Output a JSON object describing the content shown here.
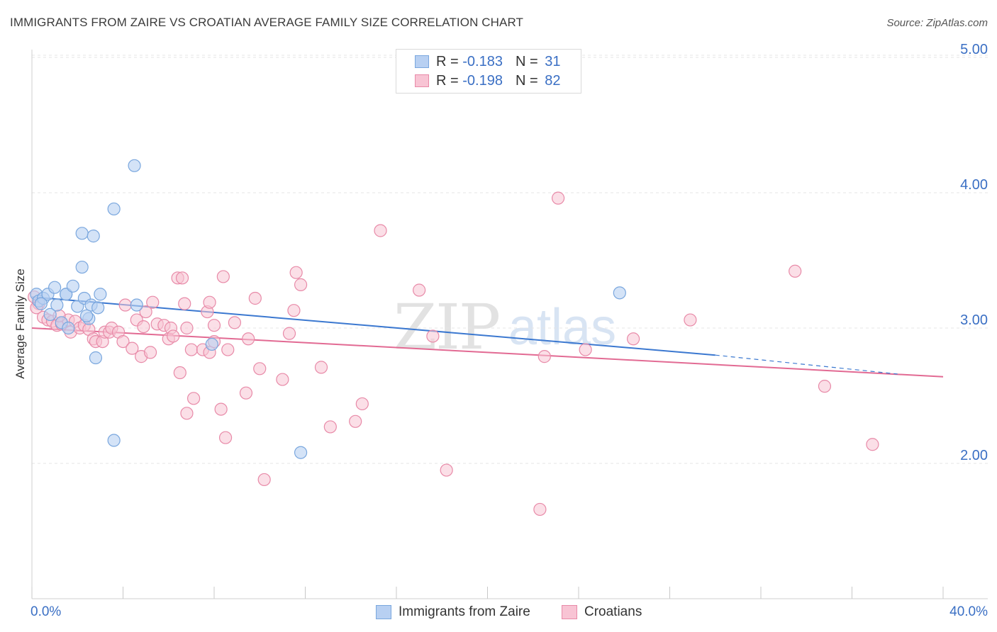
{
  "title": "IMMIGRANTS FROM ZAIRE VS CROATIAN AVERAGE FAMILY SIZE CORRELATION CHART",
  "source": "Source: ZipAtlas.com",
  "watermark": {
    "part1": "ZIP",
    "part2": "atlas"
  },
  "legend": {
    "rows": [
      {
        "r_label": "R = ",
        "r_value": "-0.183",
        "n_label": "N = ",
        "n_value": "31"
      },
      {
        "r_label": "R = ",
        "r_value": "-0.198",
        "n_label": "N = ",
        "n_value": "82"
      }
    ]
  },
  "colors": {
    "blue_fill": "#b8d0f2",
    "blue_stroke": "#7aa7de",
    "blue_line": "#3b78d0",
    "pink_fill": "#f8c4d4",
    "pink_stroke": "#e88aa8",
    "pink_line": "#e26a93",
    "axis_text": "#3a6fc4",
    "grid": "#e4e4e4"
  },
  "chart_data": {
    "type": "scatter",
    "ylabel": "Average Family Size",
    "xlabel": "",
    "xlim": [
      0,
      40
    ],
    "ylim": [
      1.0,
      5.1
    ],
    "x_tick_labels": [
      "0.0%",
      "40.0%"
    ],
    "y_ticks": [
      2.0,
      3.0,
      4.0,
      5.0
    ],
    "y_tick_labels": [
      "2.00",
      "3.00",
      "4.00",
      "5.00"
    ],
    "grid": "horizontal dashed",
    "series": [
      {
        "name": "Immigrants from Zaire",
        "color": "#7aa7de",
        "trend": {
          "x": [
            0,
            30
          ],
          "y": [
            3.23,
            2.8
          ],
          "dash_to": [
            38,
            2.66
          ]
        },
        "points": [
          [
            0.2,
            3.25
          ],
          [
            0.3,
            3.2
          ],
          [
            0.5,
            3.22
          ],
          [
            0.7,
            3.25
          ],
          [
            0.8,
            3.1
          ],
          [
            1.0,
            3.3
          ],
          [
            1.1,
            3.17
          ],
          [
            1.3,
            3.04
          ],
          [
            1.5,
            3.25
          ],
          [
            1.5,
            3.25
          ],
          [
            1.8,
            3.31
          ],
          [
            2.0,
            3.16
          ],
          [
            2.2,
            3.45
          ],
          [
            2.2,
            3.7
          ],
          [
            2.3,
            3.22
          ],
          [
            2.5,
            3.07
          ],
          [
            2.6,
            3.17
          ],
          [
            2.7,
            3.68
          ],
          [
            2.8,
            2.78
          ],
          [
            2.9,
            3.15
          ],
          [
            3.0,
            3.25
          ],
          [
            3.6,
            3.88
          ],
          [
            3.6,
            2.17
          ],
          [
            4.5,
            4.2
          ],
          [
            4.6,
            3.17
          ],
          [
            7.9,
            2.88
          ],
          [
            11.8,
            2.08
          ],
          [
            25.8,
            3.26
          ],
          [
            2.4,
            3.09
          ],
          [
            1.6,
            3.0
          ],
          [
            0.4,
            3.18
          ]
        ]
      },
      {
        "name": "Croatians",
        "color": "#e88aa8",
        "trend": {
          "x": [
            0,
            40
          ],
          "y": [
            3.0,
            2.64
          ]
        },
        "points": [
          [
            0.1,
            3.23
          ],
          [
            0.3,
            3.18
          ],
          [
            0.5,
            3.08
          ],
          [
            0.7,
            3.06
          ],
          [
            0.9,
            3.05
          ],
          [
            1.1,
            3.02
          ],
          [
            1.3,
            3.03
          ],
          [
            1.6,
            3.06
          ],
          [
            1.7,
            2.97
          ],
          [
            1.9,
            3.05
          ],
          [
            2.1,
            3.0
          ],
          [
            2.3,
            3.02
          ],
          [
            2.5,
            2.99
          ],
          [
            2.7,
            2.92
          ],
          [
            2.8,
            2.9
          ],
          [
            3.1,
            2.9
          ],
          [
            3.2,
            2.97
          ],
          [
            3.4,
            2.97
          ],
          [
            3.5,
            3.0
          ],
          [
            3.8,
            2.97
          ],
          [
            4.0,
            2.9
          ],
          [
            4.1,
            3.17
          ],
          [
            4.4,
            2.85
          ],
          [
            4.6,
            3.06
          ],
          [
            4.8,
            2.79
          ],
          [
            4.9,
            3.01
          ],
          [
            5.0,
            3.12
          ],
          [
            5.2,
            2.82
          ],
          [
            5.3,
            3.19
          ],
          [
            5.5,
            3.03
          ],
          [
            5.8,
            3.02
          ],
          [
            6.0,
            2.92
          ],
          [
            6.1,
            3.0
          ],
          [
            6.2,
            2.94
          ],
          [
            6.4,
            3.37
          ],
          [
            6.5,
            2.67
          ],
          [
            6.6,
            3.37
          ],
          [
            6.7,
            3.18
          ],
          [
            6.8,
            2.37
          ],
          [
            7.0,
            2.84
          ],
          [
            7.1,
            2.48
          ],
          [
            7.5,
            2.84
          ],
          [
            7.7,
            3.12
          ],
          [
            7.8,
            3.19
          ],
          [
            7.8,
            2.82
          ],
          [
            8.0,
            3.02
          ],
          [
            8.0,
            2.9
          ],
          [
            8.3,
            2.4
          ],
          [
            8.4,
            3.38
          ],
          [
            8.5,
            2.19
          ],
          [
            8.6,
            2.84
          ],
          [
            8.9,
            3.04
          ],
          [
            9.4,
            2.52
          ],
          [
            9.5,
            2.92
          ],
          [
            9.8,
            3.22
          ],
          [
            10.0,
            2.7
          ],
          [
            10.2,
            1.88
          ],
          [
            11.0,
            2.62
          ],
          [
            11.3,
            2.96
          ],
          [
            11.5,
            3.13
          ],
          [
            11.6,
            3.41
          ],
          [
            11.8,
            3.32
          ],
          [
            12.7,
            2.71
          ],
          [
            13.1,
            2.27
          ],
          [
            14.2,
            2.31
          ],
          [
            14.5,
            2.44
          ],
          [
            15.3,
            3.72
          ],
          [
            17.0,
            3.28
          ],
          [
            17.6,
            2.94
          ],
          [
            18.2,
            1.95
          ],
          [
            22.3,
            1.66
          ],
          [
            22.5,
            2.79
          ],
          [
            23.1,
            3.96
          ],
          [
            24.3,
            2.84
          ],
          [
            26.4,
            2.92
          ],
          [
            28.9,
            3.06
          ],
          [
            33.5,
            3.42
          ],
          [
            34.8,
            2.57
          ],
          [
            36.9,
            2.14
          ],
          [
            0.2,
            3.15
          ],
          [
            1.2,
            3.09
          ],
          [
            6.8,
            3.0
          ]
        ]
      }
    ]
  }
}
